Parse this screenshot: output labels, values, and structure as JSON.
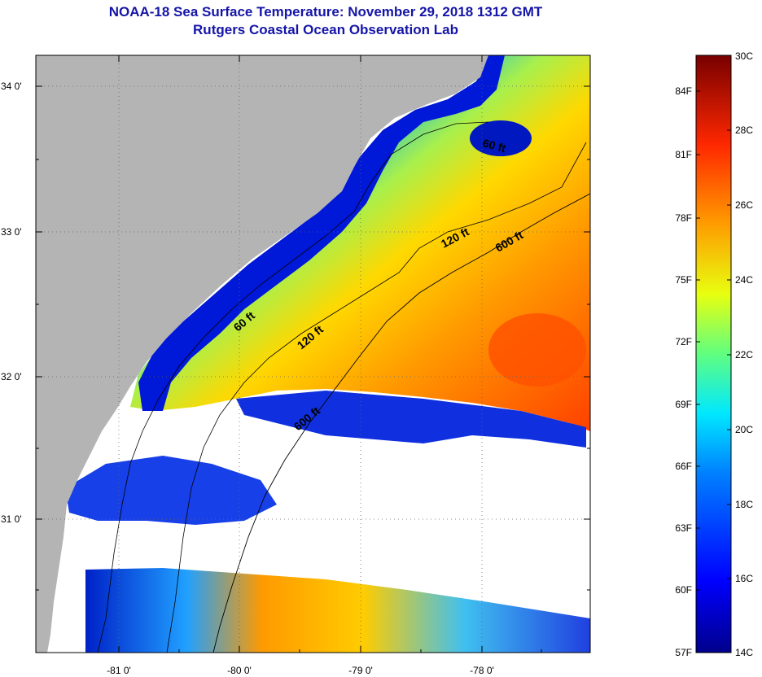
{
  "title_line1": "NOAA-18 Sea Surface Temperature:  November 29, 2018 1312 GMT",
  "title_line2": "Rutgers Coastal Ocean Observation Lab",
  "lat_labels": [
    "34 0'",
    "33 0'",
    "32 0'",
    "31 0'"
  ],
  "lon_labels": [
    "-81 0'",
    "-80 0'",
    "-79 0'",
    "-78 0'"
  ],
  "contour_labels": [
    "60 ft",
    "120 ft",
    "600 ft",
    "60 ft",
    "120 ft",
    "600 ft"
  ],
  "colorbar": {
    "fahrenheit": [
      "84F",
      "81F",
      "78F",
      "75F",
      "72F",
      "69F",
      "66F",
      "63F",
      "60F",
      "57F"
    ],
    "celsius": [
      "30C",
      "28C",
      "26C",
      "24C",
      "22C",
      "20C",
      "18C",
      "16C",
      "14C"
    ]
  },
  "colors": {
    "title": "#1515a8",
    "land": "#b4b4b4",
    "cloud": "#ffffff"
  }
}
